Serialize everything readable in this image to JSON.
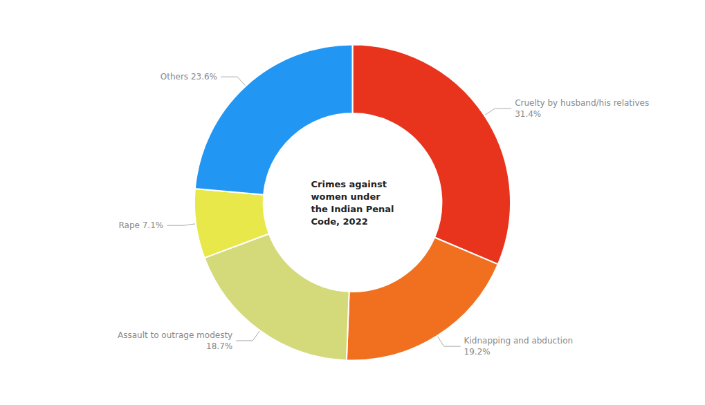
{
  "chart_data": {
    "type": "pie",
    "title": "Crimes against\nwomen under\nthe Indian Penal\nCode, 2022",
    "categories": [
      "Cruelty by husband/his relatives\n31.4%",
      "Kidnapping and abduction\n19.2%",
      "Assault to outrage modesty\n18.7%",
      "Rape 7.1%",
      "Others 23.6%"
    ],
    "values": [
      31.4,
      19.2,
      18.7,
      7.1,
      23.6
    ],
    "colors": [
      "#E8341C",
      "#F07020",
      "#D4D97A",
      "#E8E84A",
      "#2196F3"
    ]
  }
}
